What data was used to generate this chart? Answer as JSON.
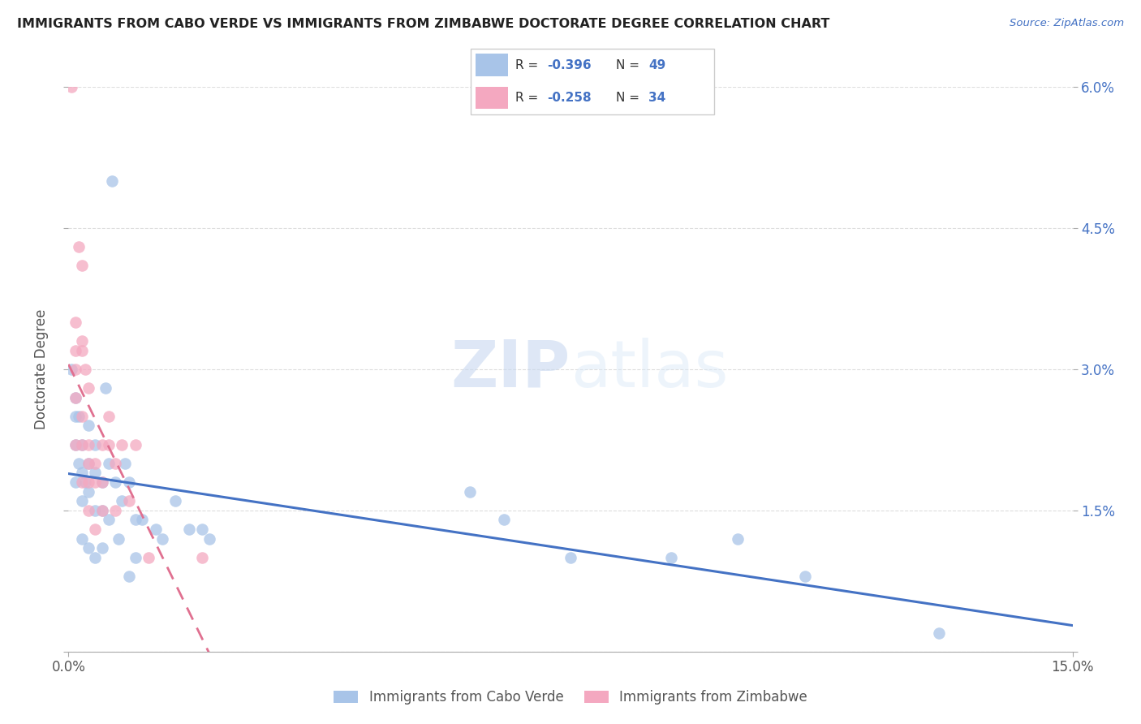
{
  "title": "IMMIGRANTS FROM CABO VERDE VS IMMIGRANTS FROM ZIMBABWE DOCTORATE DEGREE CORRELATION CHART",
  "source": "Source: ZipAtlas.com",
  "ylabel": "Doctorate Degree",
  "legend_label1": "Immigrants from Cabo Verde",
  "legend_label2": "Immigrants from Zimbabwe",
  "r1": -0.396,
  "n1": 49,
  "r2": -0.258,
  "n2": 34,
  "color1": "#a8c4e8",
  "color2": "#f4a8c0",
  "line_color1": "#4472c4",
  "line_color2": "#e07090",
  "xlim": [
    0,
    0.15
  ],
  "ylim": [
    0,
    0.06
  ],
  "xticks": [
    0.0,
    0.15
  ],
  "yticks": [
    0.0,
    0.015,
    0.03,
    0.045,
    0.06
  ],
  "cabo_verde_x": [
    0.0005,
    0.001,
    0.001,
    0.001,
    0.001,
    0.0015,
    0.0015,
    0.002,
    0.002,
    0.002,
    0.002,
    0.0025,
    0.003,
    0.003,
    0.003,
    0.003,
    0.004,
    0.004,
    0.004,
    0.004,
    0.005,
    0.005,
    0.005,
    0.0055,
    0.006,
    0.006,
    0.0065,
    0.007,
    0.0075,
    0.008,
    0.0085,
    0.009,
    0.009,
    0.01,
    0.01,
    0.011,
    0.013,
    0.014,
    0.016,
    0.018,
    0.02,
    0.021,
    0.06,
    0.065,
    0.075,
    0.09,
    0.1,
    0.11,
    0.13
  ],
  "cabo_verde_y": [
    0.03,
    0.027,
    0.025,
    0.022,
    0.018,
    0.025,
    0.02,
    0.022,
    0.019,
    0.016,
    0.012,
    0.018,
    0.024,
    0.02,
    0.017,
    0.011,
    0.022,
    0.019,
    0.015,
    0.01,
    0.018,
    0.015,
    0.011,
    0.028,
    0.02,
    0.014,
    0.05,
    0.018,
    0.012,
    0.016,
    0.02,
    0.018,
    0.008,
    0.014,
    0.01,
    0.014,
    0.013,
    0.012,
    0.016,
    0.013,
    0.013,
    0.012,
    0.017,
    0.014,
    0.01,
    0.01,
    0.012,
    0.008,
    0.002
  ],
  "zimbabwe_x": [
    0.0005,
    0.001,
    0.001,
    0.001,
    0.001,
    0.001,
    0.0015,
    0.002,
    0.002,
    0.002,
    0.002,
    0.002,
    0.002,
    0.0025,
    0.003,
    0.003,
    0.003,
    0.003,
    0.003,
    0.004,
    0.004,
    0.004,
    0.005,
    0.005,
    0.005,
    0.006,
    0.006,
    0.007,
    0.007,
    0.008,
    0.009,
    0.01,
    0.012,
    0.02
  ],
  "zimbabwe_y": [
    0.06,
    0.035,
    0.032,
    0.03,
    0.027,
    0.022,
    0.043,
    0.041,
    0.033,
    0.032,
    0.025,
    0.022,
    0.018,
    0.03,
    0.028,
    0.022,
    0.02,
    0.018,
    0.015,
    0.02,
    0.018,
    0.013,
    0.022,
    0.018,
    0.015,
    0.025,
    0.022,
    0.02,
    0.015,
    0.022,
    0.016,
    0.022,
    0.01,
    0.01
  ],
  "watermark_zip": "ZIP",
  "watermark_atlas": "atlas",
  "background_color": "#ffffff",
  "grid_color": "#dddddd"
}
